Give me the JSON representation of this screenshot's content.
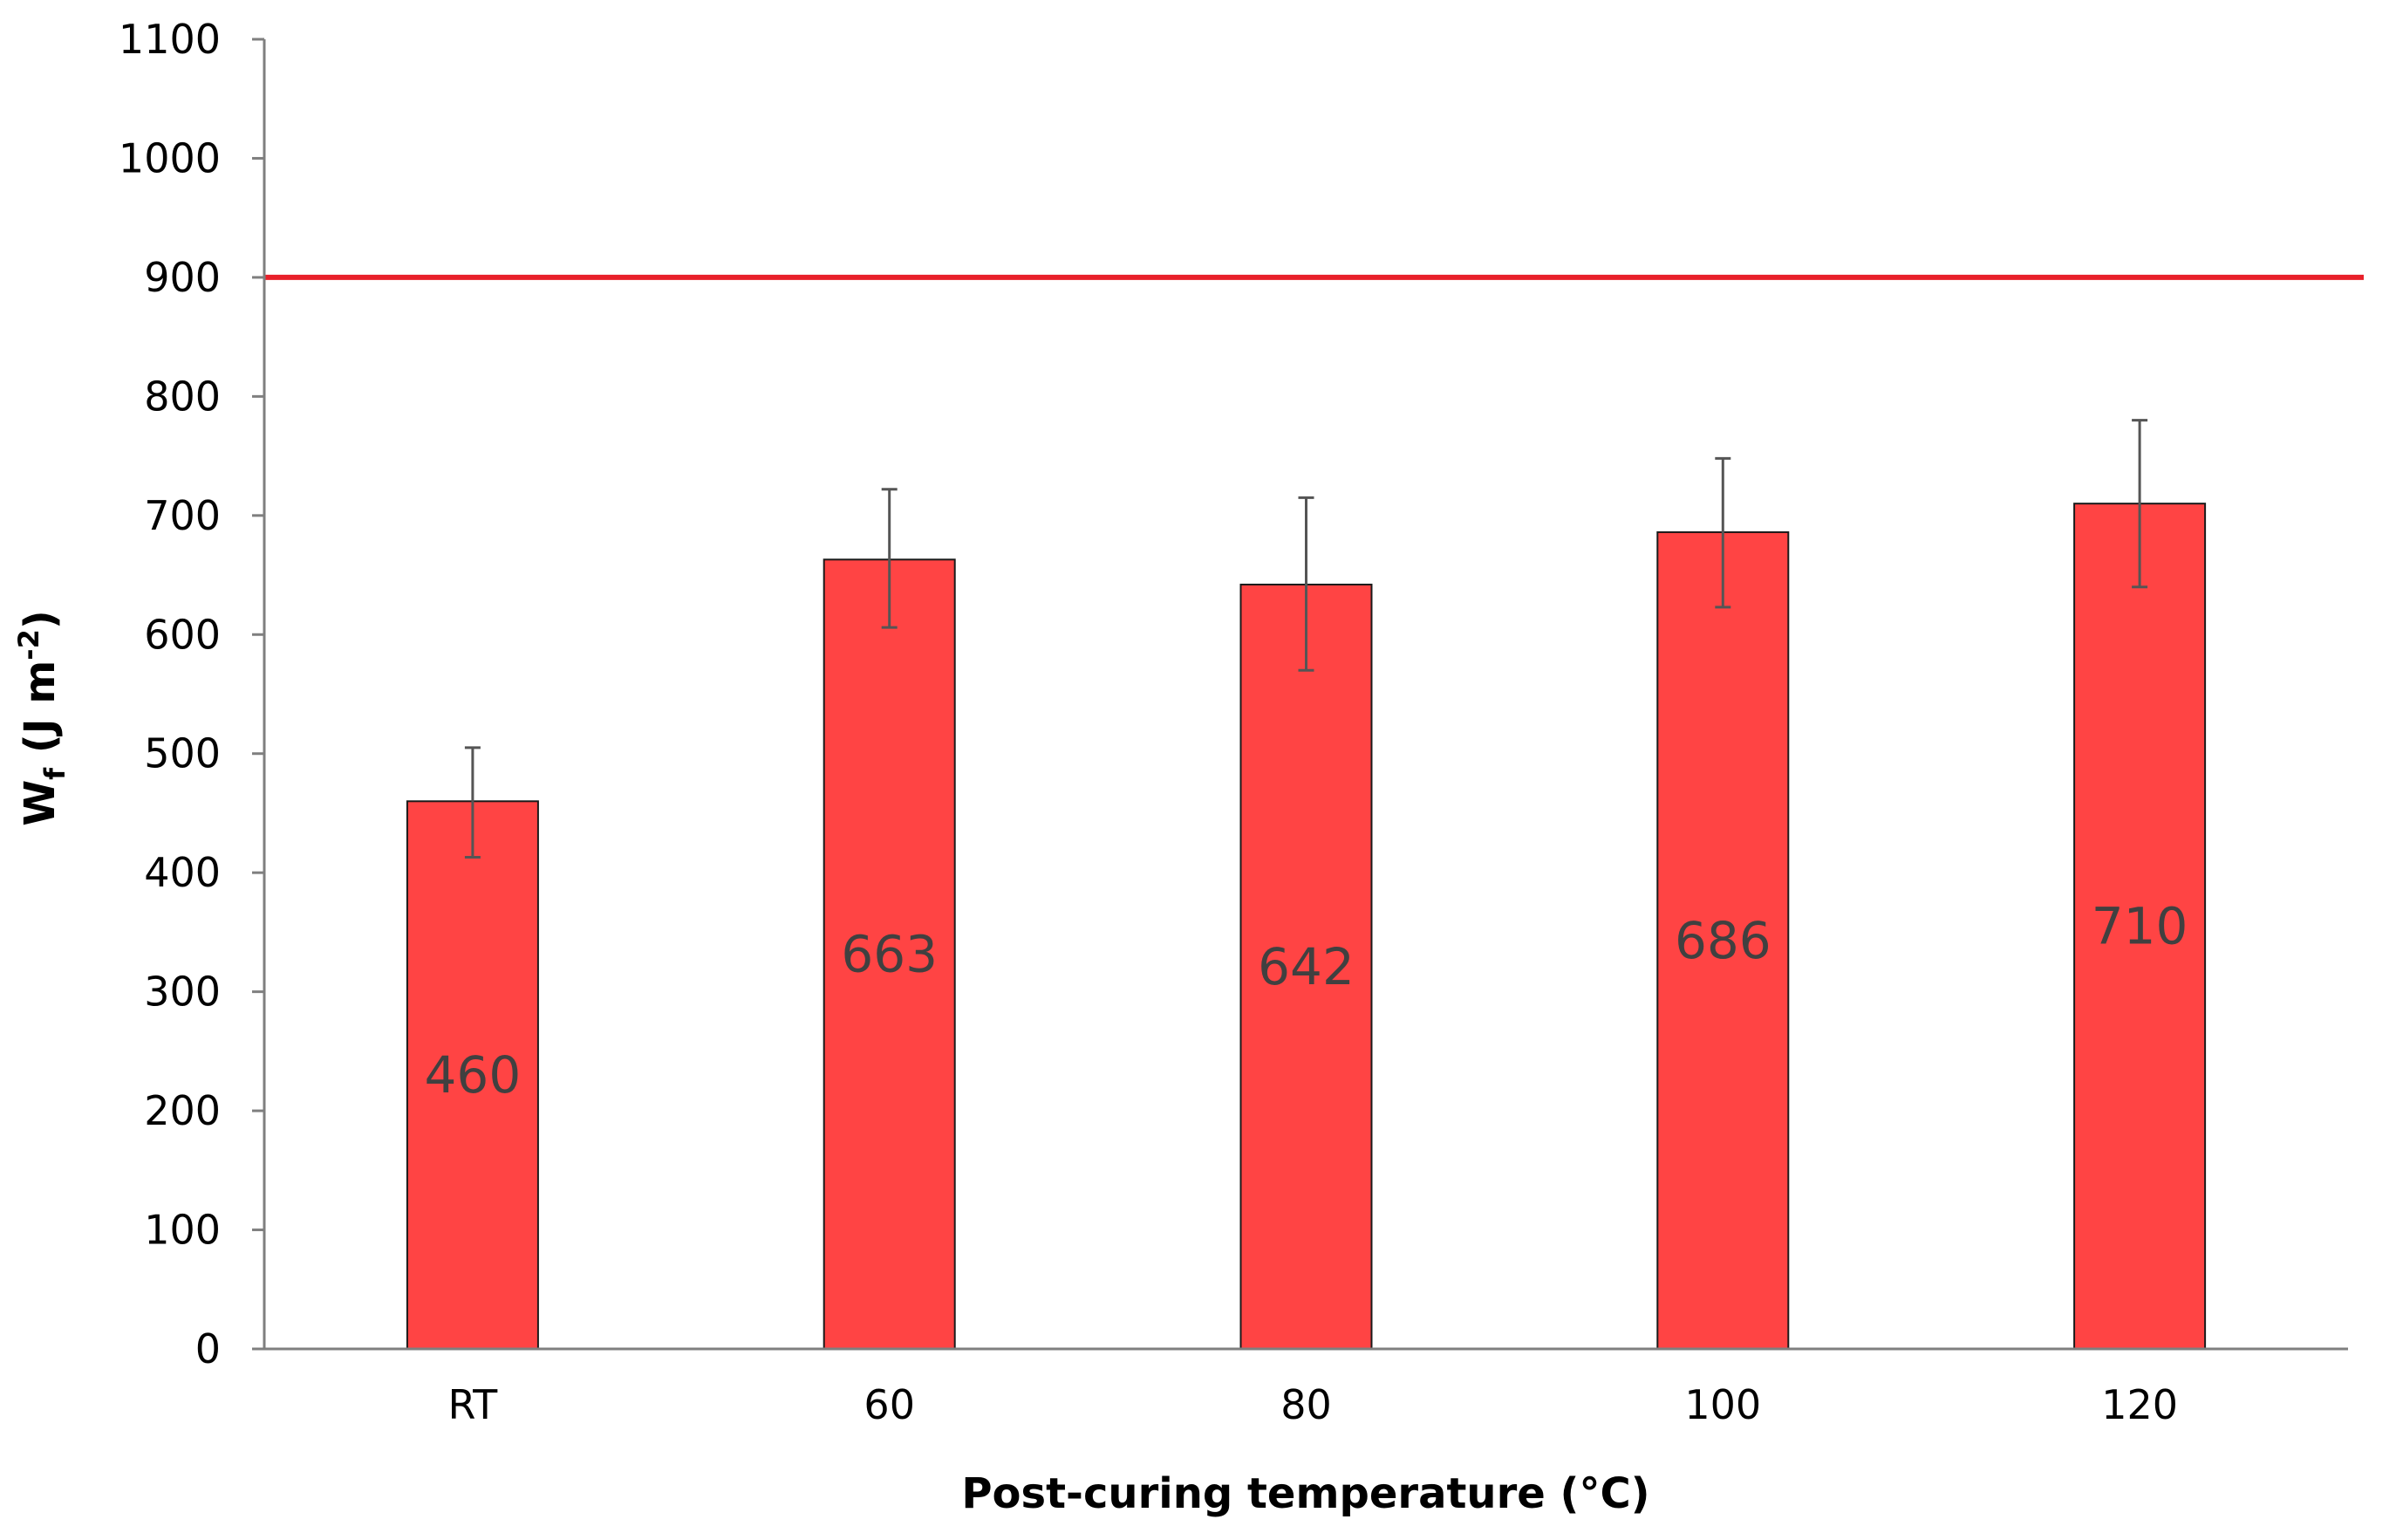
{
  "chart_data": {
    "type": "bar",
    "categories": [
      "RT",
      "60",
      "80",
      "100",
      "120"
    ],
    "values": [
      460,
      663,
      642,
      686,
      710
    ],
    "error_upper": [
      505,
      722,
      715,
      748,
      780
    ],
    "error_lower": [
      413,
      606,
      570,
      623,
      640
    ],
    "data_labels": [
      "460",
      "663",
      "642",
      "686",
      "710"
    ],
    "reference_line": {
      "value": 900,
      "color": "#e8202a"
    },
    "xlabel": "Post-curing temperature (°C)",
    "ylabel": {
      "main": "W",
      "sub": "f",
      "units_prefix": " (J m",
      "units_sup": "-2",
      "units_suffix": ")"
    },
    "ylim": [
      0,
      1100
    ],
    "yticks": [
      0,
      100,
      200,
      300,
      400,
      500,
      600,
      700,
      800,
      900,
      1000,
      1100
    ],
    "ytick_labels": [
      "0",
      "100",
      "200",
      "300",
      "400",
      "500",
      "600",
      "700",
      "800",
      "900",
      "1000",
      "1100"
    ],
    "grid": false,
    "legend": "none",
    "colors": {
      "bar_fill": "#ff4444",
      "bar_stroke": "#1a1a1a",
      "axis": "#7f7f7f",
      "error_bar": "#555555"
    }
  }
}
